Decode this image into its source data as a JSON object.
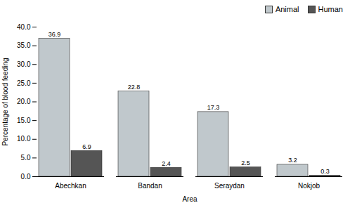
{
  "chart_data": {
    "type": "bar",
    "categories": [
      "Abechkan",
      "Bandan",
      "Seraydan",
      "Nokjob"
    ],
    "series": [
      {
        "name": "Animal",
        "color": "#C0C8CC",
        "values": [
          36.9,
          22.8,
          17.3,
          3.2
        ]
      },
      {
        "name": "Human",
        "color": "#555555",
        "values": [
          6.9,
          2.4,
          2.5,
          0.3
        ]
      }
    ],
    "xlabel": "Area",
    "ylabel": "Percentage of blood feeding",
    "ylim": [
      0,
      40.0
    ],
    "yticks": [
      {
        "value": 0,
        "label": "0.0"
      },
      {
        "value": 5,
        "label": "5.0"
      },
      {
        "value": 10,
        "label": "10.0"
      },
      {
        "value": 15,
        "label": "15.0"
      },
      {
        "value": 20,
        "label": "20.0"
      },
      {
        "value": 25,
        "label": "25.0"
      },
      {
        "value": 30,
        "label": "30.0"
      },
      {
        "value": 35,
        "label": "35.0"
      },
      {
        "value": 40,
        "label": "40.0"
      }
    ],
    "legend": "upper right",
    "data_labels": true
  }
}
